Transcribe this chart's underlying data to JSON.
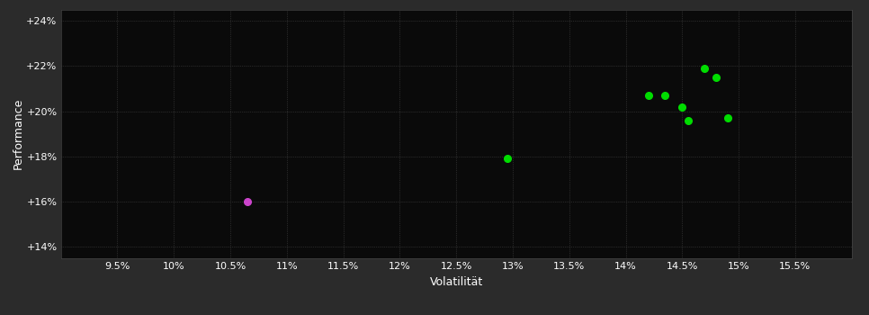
{
  "background_color": "#2b2b2b",
  "plot_bg_color": "#0a0a0a",
  "grid_color": "#555555",
  "text_color": "#ffffff",
  "xlabel": "Volatilität",
  "ylabel": "Performance",
  "xlim": [
    0.09,
    0.16
  ],
  "ylim": [
    0.135,
    0.245
  ],
  "xticks": [
    0.095,
    0.1,
    0.105,
    0.11,
    0.115,
    0.12,
    0.125,
    0.13,
    0.135,
    0.14,
    0.145,
    0.15,
    0.155
  ],
  "yticks": [
    0.14,
    0.16,
    0.18,
    0.2,
    0.22,
    0.24
  ],
  "green_points": [
    [
      0.1295,
      0.179
    ],
    [
      0.142,
      0.207
    ],
    [
      0.1435,
      0.207
    ],
    [
      0.145,
      0.202
    ],
    [
      0.1455,
      0.196
    ],
    [
      0.147,
      0.219
    ],
    [
      0.148,
      0.215
    ],
    [
      0.149,
      0.197
    ]
  ],
  "magenta_points": [
    [
      0.1065,
      0.16
    ]
  ],
  "green_color": "#00dd00",
  "magenta_color": "#cc44cc",
  "marker_size": 5.5
}
